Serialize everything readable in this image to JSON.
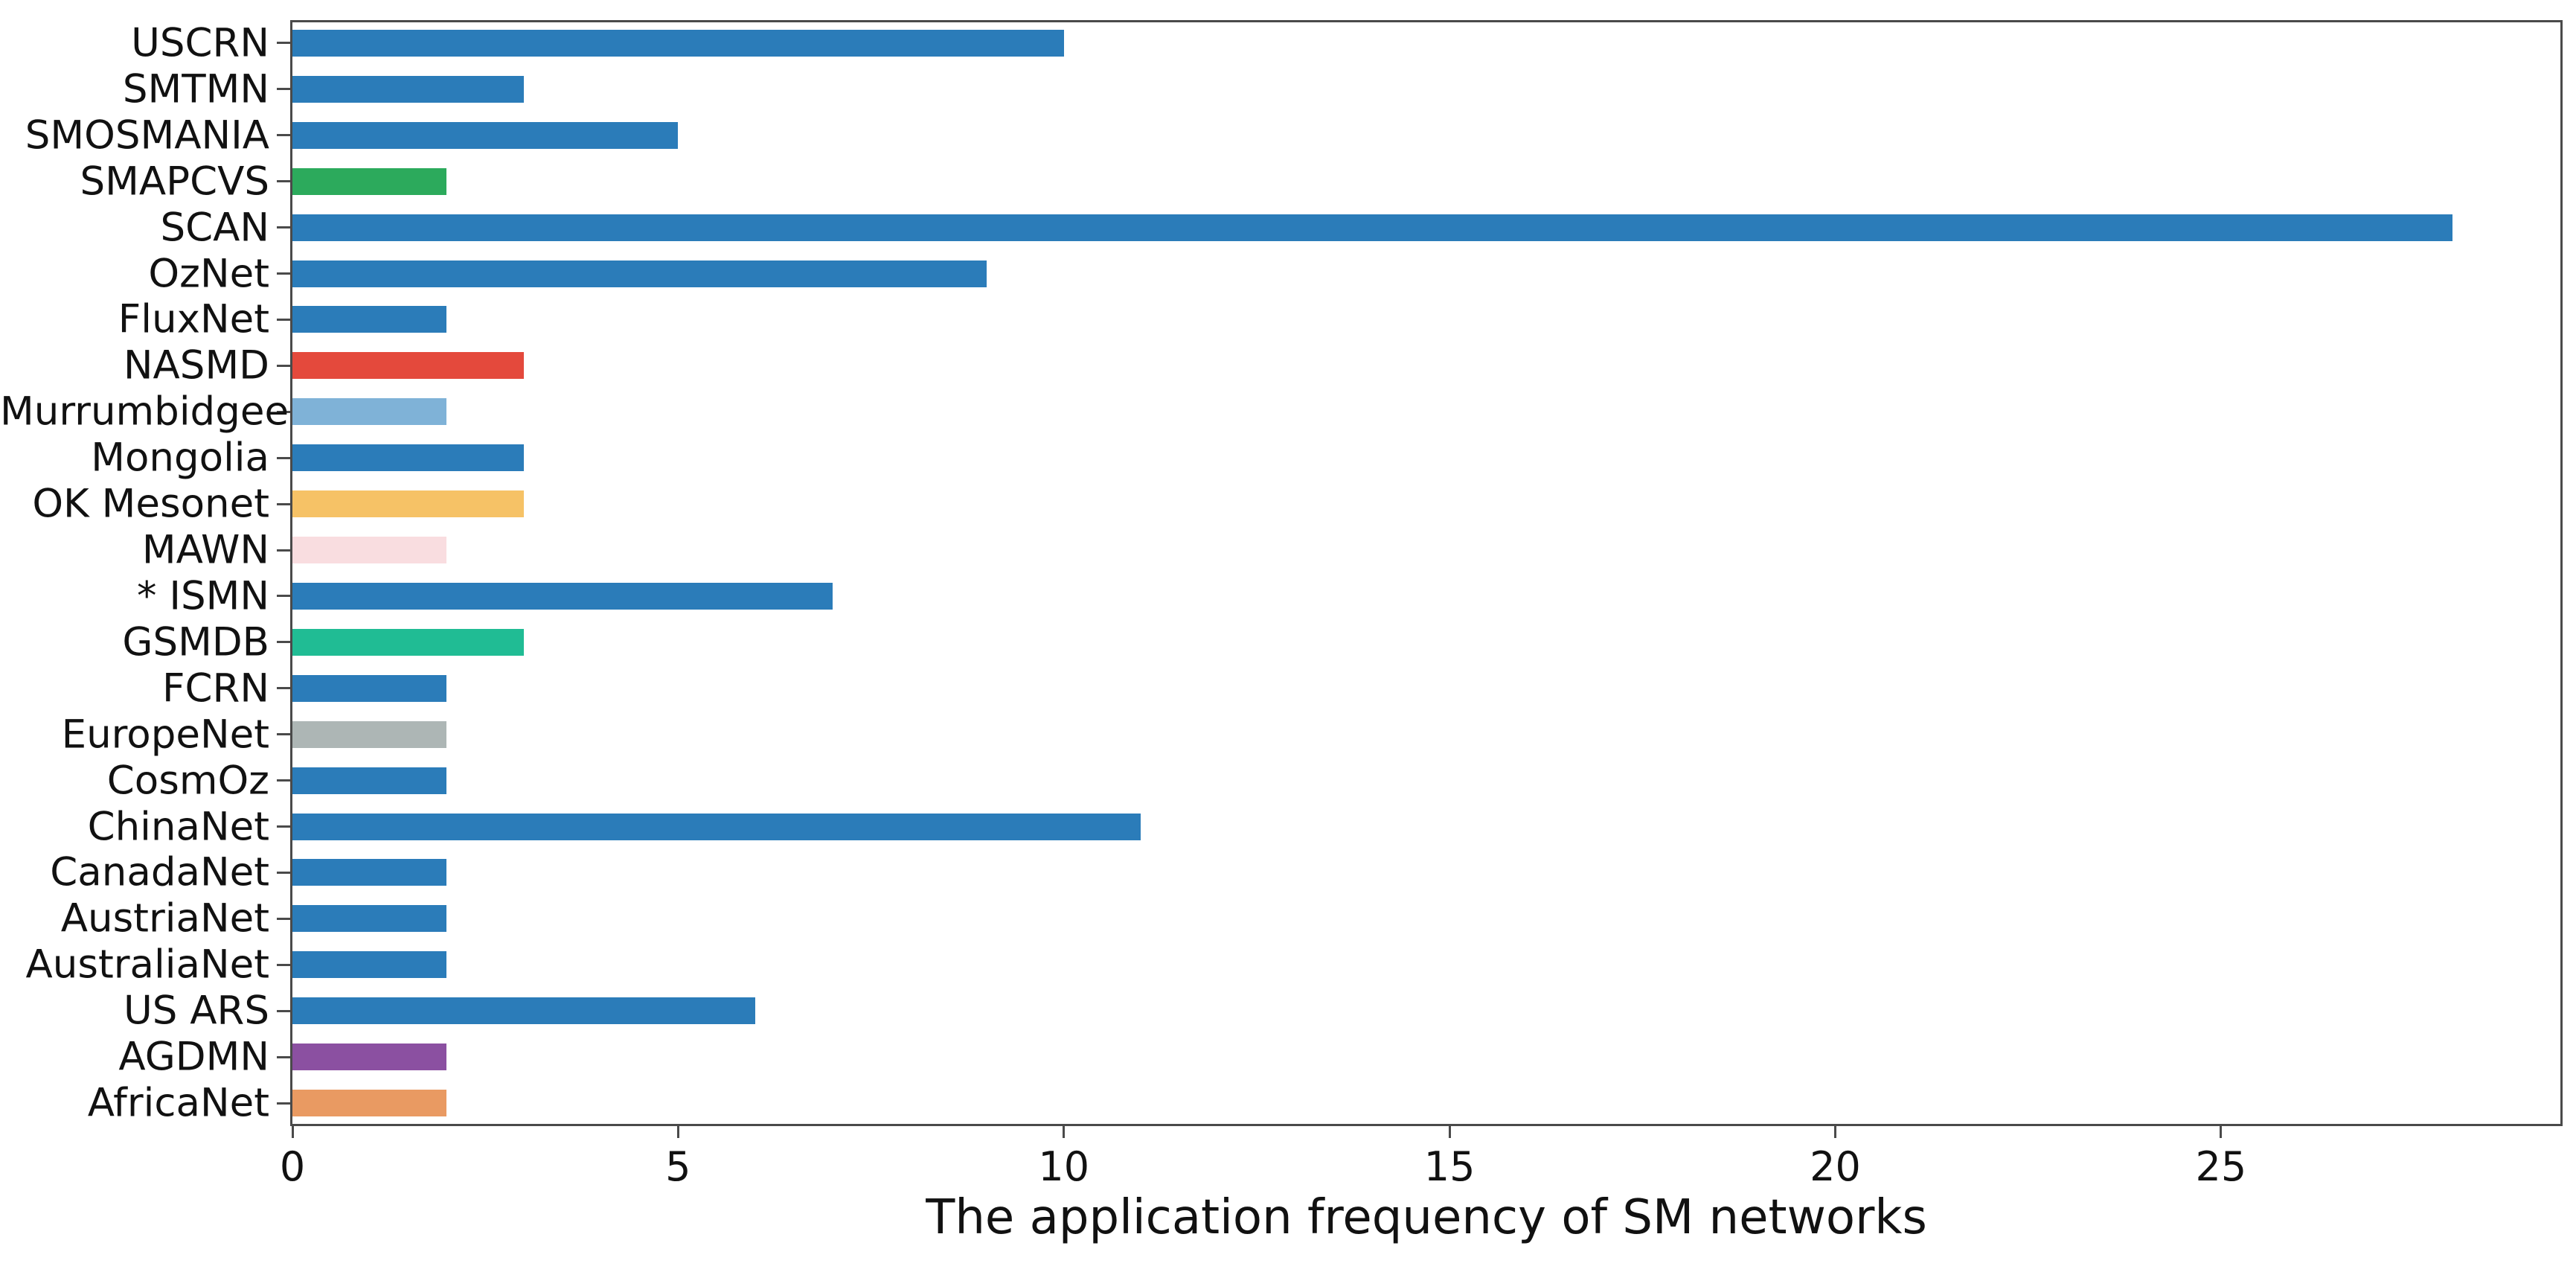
{
  "figure": {
    "background": "#ffffff",
    "axis_color": "#4a4a4a",
    "text_color": "#111111"
  },
  "chart_data": {
    "type": "bar",
    "orientation": "horizontal",
    "title": "",
    "xlabel": "The application frequency of SM networks",
    "ylabel": "",
    "xlim": [
      0,
      29.4
    ],
    "xticks": [
      0,
      5,
      10,
      15,
      20,
      25
    ],
    "grid": false,
    "legend": false,
    "default_bar_color": "#2b7cb9",
    "categories": [
      "USCRN",
      "SMTMN",
      "SMOSMANIA",
      "SMAPCVS",
      "SCAN",
      "OzNet",
      "FluxNet",
      "NASMD",
      "Murrumbidgee",
      "Mongolia",
      "OK Mesonet",
      "MAWN",
      "* ISMN",
      "GSMDB",
      "FCRN",
      "EuropeNet",
      "CosmOz",
      "ChinaNet",
      "CanadaNet",
      "AustriaNet",
      "AustraliaNet",
      "US ARS",
      "AGDMN",
      "AfricaNet"
    ],
    "values": [
      10,
      3,
      5,
      2,
      28,
      9,
      2,
      3,
      2,
      3,
      3,
      2,
      7,
      3,
      2,
      2,
      2,
      11,
      2,
      2,
      2,
      6,
      2,
      2
    ],
    "bar_colors": [
      "#2b7cb9",
      "#2b7cb9",
      "#2b7cb9",
      "#2caa5c",
      "#2b7cb9",
      "#2b7cb9",
      "#2b7cb9",
      "#e4493c",
      "#7fb2d7",
      "#2b7cb9",
      "#f6c266",
      "#f9dde0",
      "#2b7cb9",
      "#20bc94",
      "#2b7cb9",
      "#adb6b5",
      "#2b7cb9",
      "#2b7cb9",
      "#2b7cb9",
      "#2b7cb9",
      "#2b7cb9",
      "#2b7cb9",
      "#8b50a1",
      "#e99a62"
    ]
  }
}
